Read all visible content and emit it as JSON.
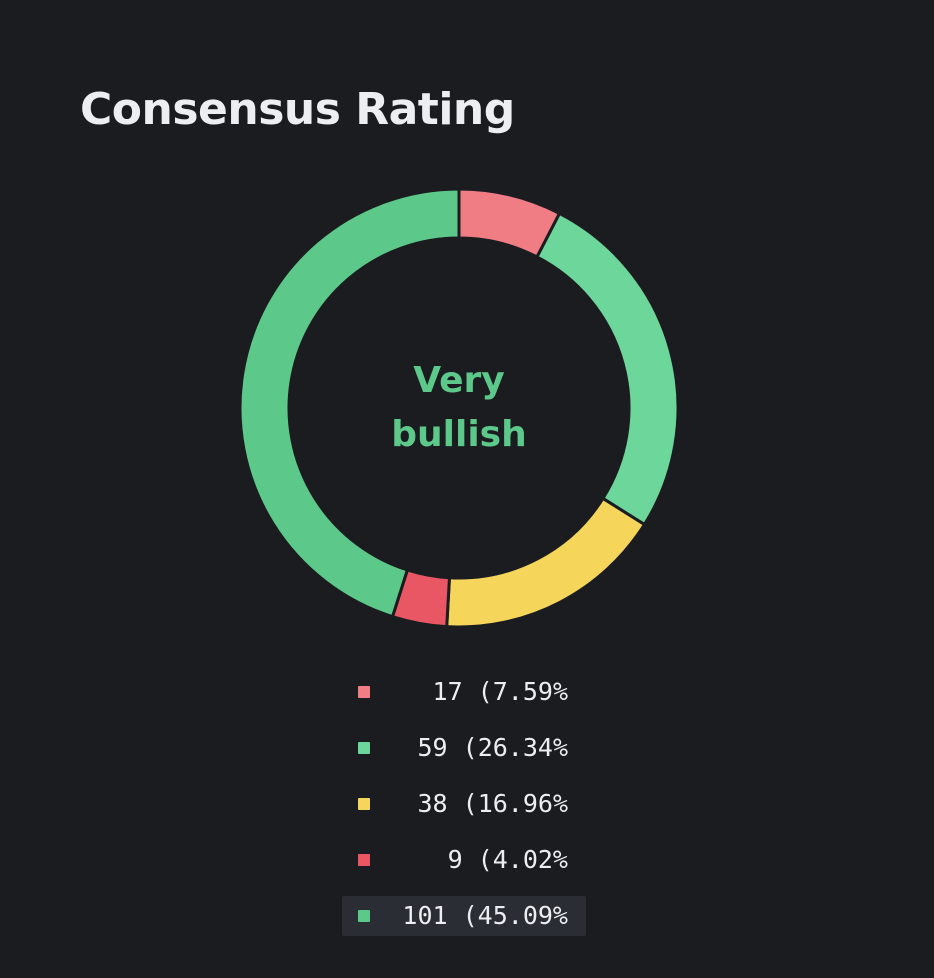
{
  "header": {
    "title": "Consensus Rating"
  },
  "chart_data": {
    "type": "pie",
    "title": "Consensus Rating",
    "center_label": [
      "Very",
      "bullish"
    ],
    "center_label_color": "#5cc98a",
    "donut": true,
    "slices": [
      {
        "value": 17,
        "percent": 7.59,
        "label": "17 (7.59%",
        "color": "#f07c84"
      },
      {
        "value": 59,
        "percent": 26.34,
        "label": "59 (26.34%",
        "color": "#6dd69b"
      },
      {
        "value": 38,
        "percent": 16.96,
        "label": "38 (16.96%",
        "color": "#f5d55a"
      },
      {
        "value": 9,
        "percent": 4.02,
        "label": "9 (4.02%",
        "color": "#e85763"
      },
      {
        "value": 101,
        "percent": 45.09,
        "label": "101 (45.09%",
        "color": "#5cc98a"
      }
    ],
    "start_angle_deg": 0,
    "direction": "clockwise",
    "separator_color": "#1b1c20",
    "legend_position": "bottom",
    "active_legend_index": 4
  }
}
